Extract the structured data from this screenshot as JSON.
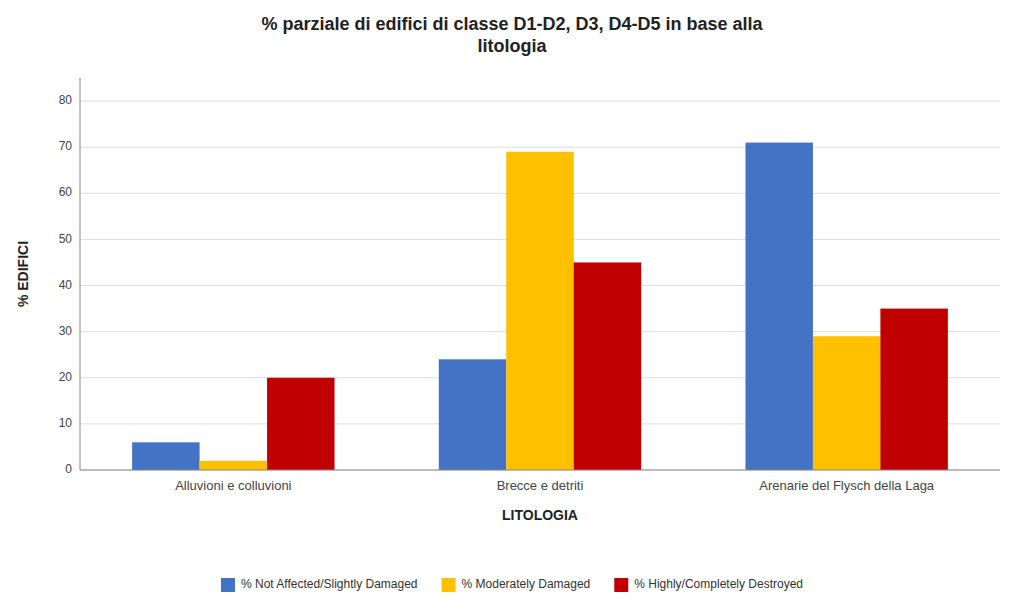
{
  "chart_data": {
    "type": "bar",
    "title": "% parziale di edifici di classe D1-D2, D3, D4-D5 in base alla\nlitologia",
    "x_label": "LITOLOGIA",
    "y_label": "% EDIFICI",
    "categories": [
      "Alluvioni e colluvioni",
      "Brecce e detriti",
      "Arenarie del Flysch della Laga"
    ],
    "series": [
      {
        "name": "% Not Affected/Slightly Damaged",
        "values": [
          6,
          24,
          71
        ],
        "color": "#4472C4"
      },
      {
        "name": "% Moderately Damaged",
        "values": [
          2,
          69,
          29
        ],
        "color": "#FFC000"
      },
      {
        "name": "% Highly/Completely Destroyed",
        "values": [
          20,
          45,
          35
        ],
        "color": "#C00000"
      }
    ],
    "ylim": [
      0,
      85
    ],
    "yticks": [
      0,
      10,
      20,
      30,
      40,
      50,
      60,
      70,
      80
    ],
    "grid": true,
    "legend": "bottom"
  }
}
